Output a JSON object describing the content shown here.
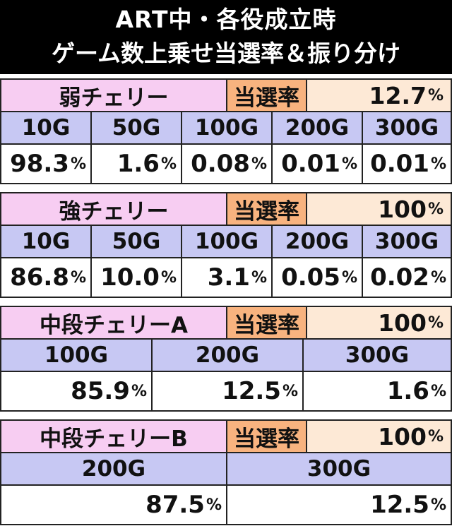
{
  "title_line1": "ART中・各役成立時",
  "title_line2": "ゲーム数上乗せ当選率＆振り分け",
  "sections": [
    {
      "name": "弱チェリー",
      "label": "当選率",
      "rate": "12.7",
      "rate_unit": "%",
      "headers": [
        "10G",
        "50G",
        "100G",
        "200G",
        "300G"
      ],
      "values": [
        "98.3",
        "1.6",
        "0.08",
        "0.01",
        "0.01"
      ],
      "unit": "%"
    },
    {
      "name": "強チェリー",
      "label": "当選率",
      "rate": "100",
      "rate_unit": "%",
      "headers": [
        "10G",
        "50G",
        "100G",
        "200G",
        "300G"
      ],
      "values": [
        "86.8",
        "10.0",
        "3.1",
        "0.05",
        "0.02"
      ],
      "unit": "%"
    },
    {
      "name": "中段チェリーA",
      "label": "当選率",
      "rate": "100",
      "rate_unit": "%",
      "headers": [
        "100G",
        "200G",
        "300G"
      ],
      "values": [
        "85.9",
        "12.5",
        "1.6"
      ],
      "unit": "%"
    },
    {
      "name": "中段チェリーB",
      "label": "当選率",
      "rate": "100",
      "rate_unit": "%",
      "headers": [
        "200G",
        "300G"
      ],
      "values": [
        "87.5",
        "12.5"
      ],
      "unit": "%"
    }
  ]
}
